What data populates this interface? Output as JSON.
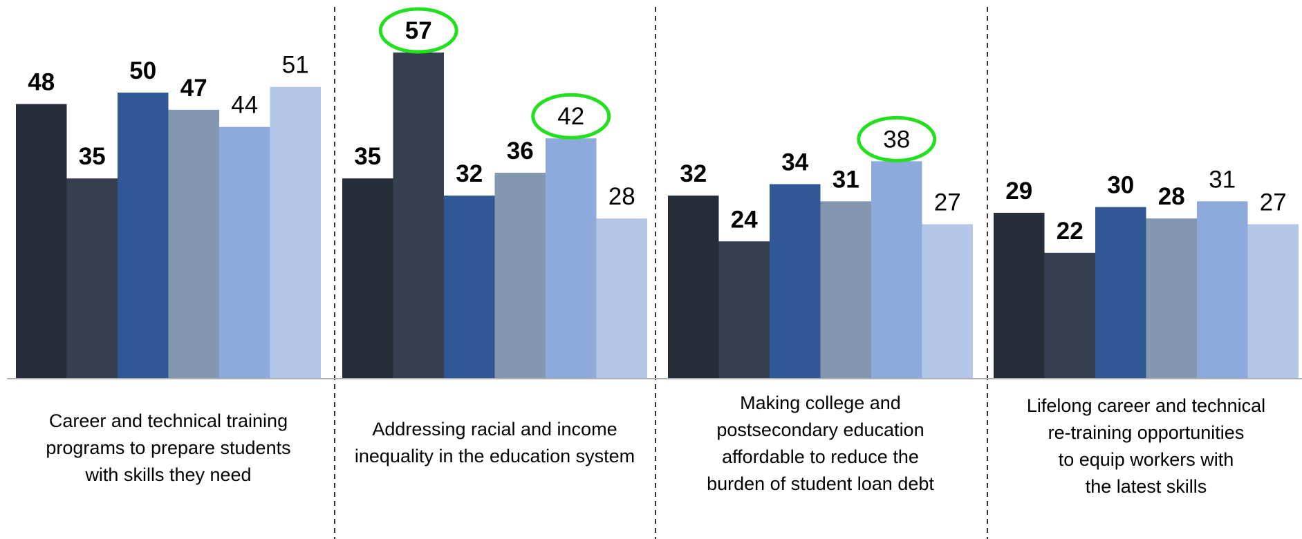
{
  "chart_data": {
    "type": "bar",
    "categories": [
      [
        "Career and technical training",
        "programs to prepare students",
        "with skills they need"
      ],
      [
        "Addressing racial and income",
        "inequality in the education system"
      ],
      [
        "Making college and",
        "postsecondary education",
        "affordable to reduce the",
        "burden of student loan debt"
      ],
      [
        "Lifelong career and technical",
        "re-training opportunities",
        "to equip workers with",
        "the latest skills"
      ]
    ],
    "series": [
      {
        "values": [
          48,
          35,
          32,
          29
        ],
        "color": "#262c38",
        "label_style": "bold"
      },
      {
        "values": [
          35,
          57,
          24,
          22
        ],
        "color": "#353f50",
        "label_style": "bold"
      },
      {
        "values": [
          50,
          32,
          34,
          30
        ],
        "color": "#305896",
        "label_style": "bold"
      },
      {
        "values": [
          47,
          36,
          31,
          28
        ],
        "color": "#8497b0",
        "label_style": "bold"
      },
      {
        "values": [
          44,
          42,
          38,
          31
        ],
        "color": "#8eaadc",
        "label_style": "normal"
      },
      {
        "values": [
          51,
          28,
          27,
          27
        ],
        "color": "#b4c7e7",
        "label_style": "normal"
      }
    ],
    "highlighted": [
      {
        "series": 1,
        "category": 1
      },
      {
        "series": 4,
        "category": 1
      },
      {
        "series": 4,
        "category": 2
      }
    ],
    "highlight_color": "#22e01e",
    "ylim": [
      0,
      57
    ],
    "grid": false,
    "group_separators": "dashed vertical lines"
  }
}
